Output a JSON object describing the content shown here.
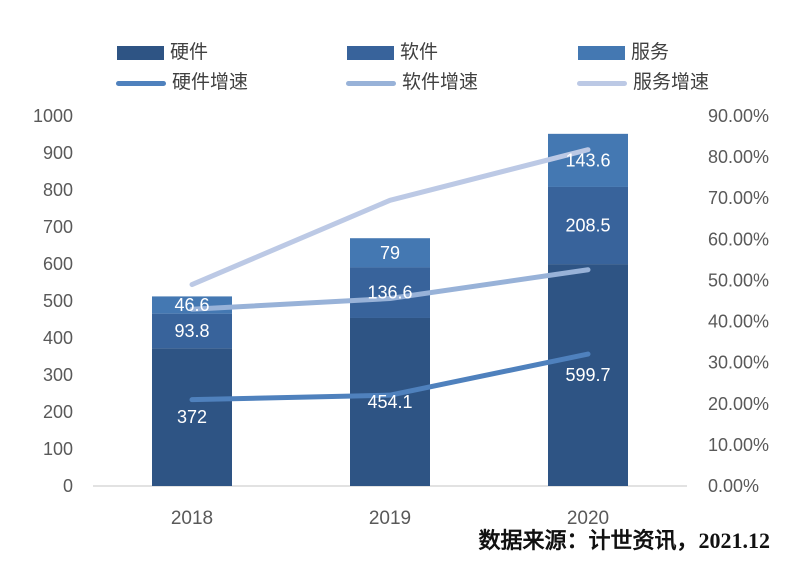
{
  "chart_data": {
    "type": "bar",
    "stacked": true,
    "overlay": "line",
    "categories": [
      "2018",
      "2019",
      "2020"
    ],
    "bar_series": [
      {
        "name": "硬件",
        "color": "#2e5484",
        "values": [
          372,
          454.1,
          599.7
        ]
      },
      {
        "name": "软件",
        "color": "#38639b",
        "values": [
          93.8,
          136.6,
          208.5
        ]
      },
      {
        "name": "服务",
        "color": "#4478b2",
        "values": [
          46.6,
          79,
          143.6
        ]
      }
    ],
    "line_series": [
      {
        "name": "硬件增速",
        "color": "#4f81bd",
        "values_pct": [
          21,
          22.1,
          32.1
        ]
      },
      {
        "name": "软件增速",
        "color": "#98b2d8",
        "values_pct": [
          43,
          45.6,
          52.6
        ]
      },
      {
        "name": "服务增速",
        "color": "#bcc9e5",
        "values_pct": [
          49,
          69.5,
          81.8
        ]
      }
    ],
    "left_axis": {
      "min": 0,
      "max": 1000,
      "step": 100,
      "tick_labels": [
        "0",
        "100",
        "200",
        "300",
        "400",
        "500",
        "600",
        "700",
        "800",
        "900",
        "1000"
      ]
    },
    "right_axis": {
      "min_pct": 0,
      "max_pct": 90,
      "step_pct": 10,
      "tick_labels": [
        "0.00%",
        "10.00%",
        "20.00%",
        "30.00%",
        "40.00%",
        "50.00%",
        "60.00%",
        "70.00%",
        "80.00%",
        "90.00%"
      ]
    },
    "bar_value_labels_visible": true,
    "gridlines": false,
    "legend_position": "top",
    "source_note": "数据来源：计世资讯，2021.12"
  },
  "style": {
    "axis_text_color": "#595959",
    "legend_text_color": "#404040",
    "axis_line_color": "#d9d9d9",
    "bar_label_color": "#ffffff",
    "background": "#ffffff"
  }
}
